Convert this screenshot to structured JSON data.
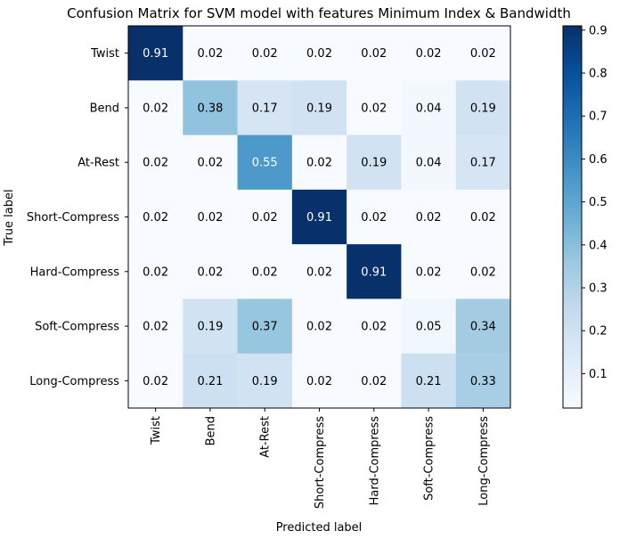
{
  "chart_data": {
    "type": "heatmap",
    "title": "Confusion Matrix for SVM model with features Minimum Index & Bandwidth",
    "xlabel": "Predicted label",
    "ylabel": "True label",
    "x_categories": [
      "Twist",
      "Bend",
      "At-Rest",
      "Short-Compress",
      "Hard-Compress",
      "Soft-Compress",
      "Long-Compress"
    ],
    "y_categories": [
      "Twist",
      "Bend",
      "At-Rest",
      "Short-Compress",
      "Hard-Compress",
      "Soft-Compress",
      "Long-Compress"
    ],
    "values": [
      [
        0.91,
        0.02,
        0.02,
        0.02,
        0.02,
        0.02,
        0.02
      ],
      [
        0.02,
        0.38,
        0.17,
        0.19,
        0.02,
        0.04,
        0.19
      ],
      [
        0.02,
        0.02,
        0.55,
        0.02,
        0.19,
        0.04,
        0.17
      ],
      [
        0.02,
        0.02,
        0.02,
        0.91,
        0.02,
        0.02,
        0.02
      ],
      [
        0.02,
        0.02,
        0.02,
        0.02,
        0.91,
        0.02,
        0.02
      ],
      [
        0.02,
        0.19,
        0.37,
        0.02,
        0.02,
        0.05,
        0.34
      ],
      [
        0.02,
        0.21,
        0.19,
        0.02,
        0.02,
        0.21,
        0.33
      ]
    ],
    "colormap": "Blues",
    "vmin": 0.02,
    "vmax": 0.91,
    "colorbar_ticks": [
      "0.1",
      "0.2",
      "0.3",
      "0.4",
      "0.5",
      "0.6",
      "0.7",
      "0.8",
      "0.9"
    ]
  }
}
